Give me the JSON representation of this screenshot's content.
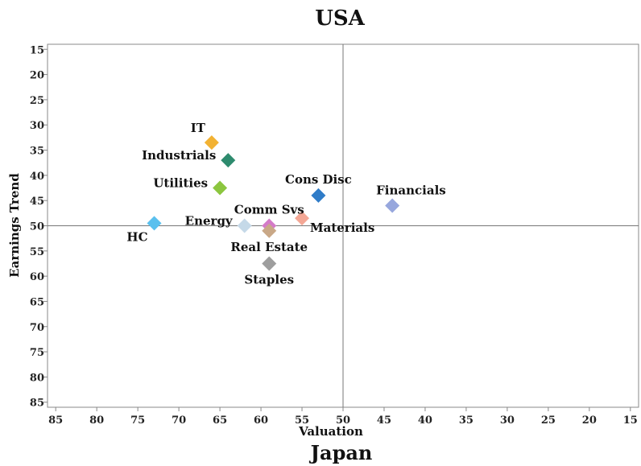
{
  "chart_data": {
    "type": "scatter",
    "title": "USA",
    "subtitle": "Japan",
    "xlabel": "Valuation",
    "ylabel": "Earnings Trend",
    "xlim": [
      86,
      14
    ],
    "ylim": [
      14,
      86
    ],
    "x_reversed": true,
    "y_reversed": true,
    "xticks": [
      85,
      80,
      75,
      70,
      65,
      60,
      55,
      50,
      45,
      40,
      35,
      30,
      25,
      20,
      15
    ],
    "yticks": [
      15,
      20,
      25,
      30,
      35,
      40,
      45,
      50,
      55,
      60,
      65,
      70,
      75,
      80,
      85
    ],
    "reference_lines": {
      "x": 50,
      "y": 50
    },
    "grid": false,
    "points": [
      {
        "label": "IT",
        "x": 66,
        "y": 33.5,
        "color": "#F2B233",
        "label_pos": "above-left"
      },
      {
        "label": "Industrials",
        "x": 64,
        "y": 37,
        "color": "#2E8B6E",
        "label_pos": "left"
      },
      {
        "label": "Utilities",
        "x": 65,
        "y": 42.5,
        "color": "#8CC63F",
        "label_pos": "left"
      },
      {
        "label": "Cons Disc",
        "x": 53,
        "y": 44,
        "color": "#2F7CC8",
        "label_pos": "above"
      },
      {
        "label": "Financials",
        "x": 44,
        "y": 46,
        "color": "#97A7DD",
        "label_pos": "above-right"
      },
      {
        "label": "HC",
        "x": 73,
        "y": 49.5,
        "color": "#5AC0EE",
        "label_pos": "below-left"
      },
      {
        "label": "Energy",
        "x": 62,
        "y": 50,
        "color": "#C5D9E8",
        "label_pos": "left"
      },
      {
        "label": "Comm Svs",
        "x": 59,
        "y": 50,
        "color": "#D47BC8",
        "label_pos": "above"
      },
      {
        "label": "Materials",
        "x": 55,
        "y": 48.5,
        "color": "#F4A795",
        "label_pos": "below-right"
      },
      {
        "label": "Real Estate",
        "x": 59,
        "y": 51,
        "color": "#C9A887",
        "label_pos": "below"
      },
      {
        "label": "Staples",
        "x": 59,
        "y": 57.5,
        "color": "#9E9E9E",
        "label_pos": "below"
      }
    ]
  }
}
